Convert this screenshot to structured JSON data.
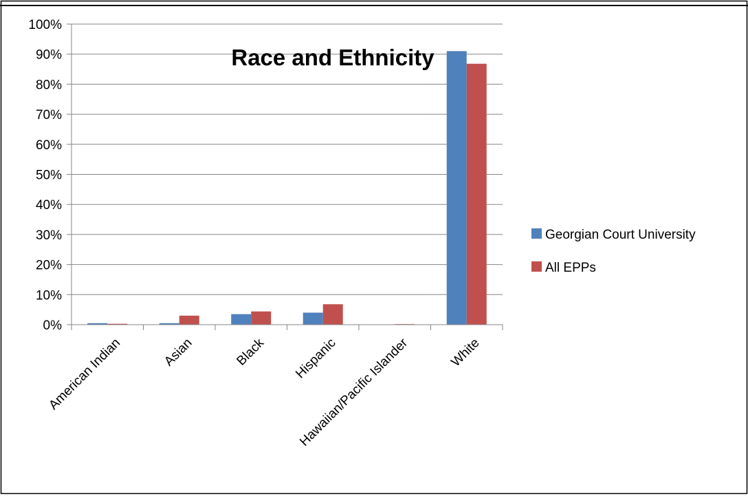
{
  "chart_data": {
    "type": "bar",
    "title": "Race and Ethnicity",
    "xlabel": "",
    "ylabel": "",
    "categories": [
      "American Indian",
      "Asian",
      "Black",
      "Hispanic",
      "Hawaiian/Pacific Islander",
      "White"
    ],
    "series": [
      {
        "name": "Georgian Court University",
        "color": "#4F81BD",
        "values": [
          0.5,
          0.5,
          3.5,
          4.0,
          0.0,
          91.0
        ]
      },
      {
        "name": "All EPPs",
        "color": "#C0504D",
        "values": [
          0.3,
          3.0,
          4.4,
          6.8,
          0.2,
          86.8
        ]
      }
    ],
    "ylim": [
      0,
      100
    ],
    "ytick_labels": [
      "0%",
      "10%",
      "20%",
      "30%",
      "40%",
      "50%",
      "60%",
      "70%",
      "80%",
      "90%",
      "100%"
    ],
    "grid": true,
    "legend_position": "right"
  }
}
